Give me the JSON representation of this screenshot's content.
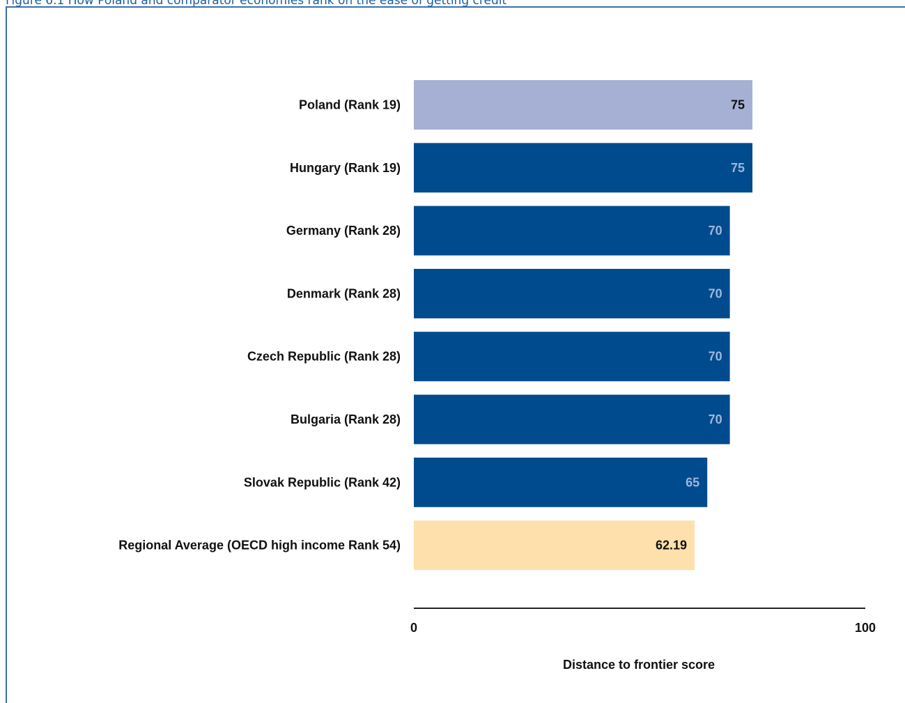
{
  "figure_title": "Figure 6.1 How Poland and comparator economies rank on the ease of getting credit",
  "chart_data": {
    "type": "bar",
    "orientation": "horizontal",
    "categories": [
      "Poland (Rank 19)",
      "Hungary (Rank 19)",
      "Germany (Rank 28)",
      "Denmark (Rank 28)",
      "Czech Republic (Rank 28)",
      "Bulgaria (Rank 28)",
      "Slovak Republic (Rank 42)",
      "Regional Average (OECD high income Rank 54)"
    ],
    "values": [
      75,
      75,
      70,
      70,
      70,
      70,
      65,
      62.19
    ],
    "value_labels": [
      "75",
      "75",
      "70",
      "70",
      "70",
      "70",
      "65",
      "62.19"
    ],
    "bar_colors": [
      "#a6b0d4",
      "#004b8d",
      "#004b8d",
      "#004b8d",
      "#004b8d",
      "#004b8d",
      "#004b8d",
      "#fde0ab"
    ],
    "label_colors": [
      "#111111",
      "#9fb6dc",
      "#9fb6dc",
      "#9fb6dc",
      "#9fb6dc",
      "#9fb6dc",
      "#9fb6dc",
      "#111111"
    ],
    "xlim": [
      0,
      100
    ],
    "xticks": [
      "0",
      "100"
    ],
    "xlabel": "Distance to frontier score",
    "grid": false
  }
}
